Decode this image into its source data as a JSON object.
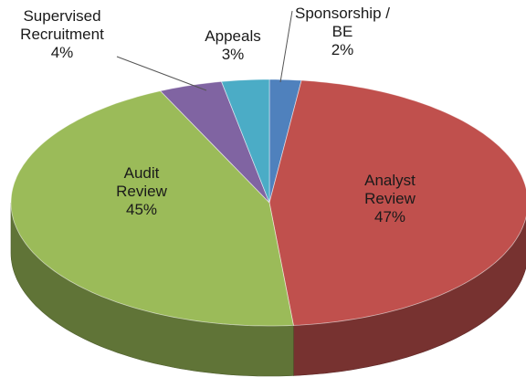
{
  "chart_data": {
    "type": "pie3d",
    "categories": [
      "Sponsorship / BE",
      "Analyst Review",
      "Audit Review",
      "Supervised Recruitment",
      "Appeals"
    ],
    "values": [
      2,
      47,
      45,
      4,
      3
    ],
    "value_labels": [
      "2%",
      "47%",
      "45%",
      "4%",
      "3%"
    ],
    "colors": [
      "#4f81bd",
      "#c0504d",
      "#9bbb59",
      "#8064a2",
      "#4bacc6"
    ]
  }
}
